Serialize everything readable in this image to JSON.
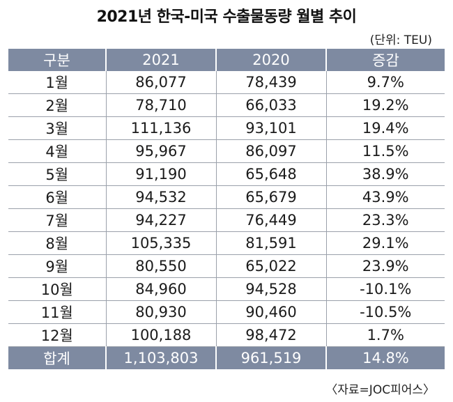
{
  "title": "2021년 한국-미국 수출물동량 월별 추이",
  "unit_note": "(단위: TEU)",
  "headers": [
    "구분",
    "2021",
    "2020",
    "증감"
  ],
  "rows": [
    [
      "1월",
      "86,077",
      "78,439",
      "9.7%"
    ],
    [
      "2월",
      "78,710",
      "66,033",
      "19.2%"
    ],
    [
      "3월",
      "111,136",
      "93,101",
      "19.4%"
    ],
    [
      "4월",
      "95,967",
      "86,097",
      "11.5%"
    ],
    [
      "5월",
      "91,190",
      "65,648",
      "38.9%"
    ],
    [
      "6월",
      "94,532",
      "65,679",
      "43.9%"
    ],
    [
      "7월",
      "94,227",
      "76,449",
      "23.3%"
    ],
    [
      "8월",
      "105,335",
      "81,591",
      "29.1%"
    ],
    [
      "9월",
      "80,550",
      "65,022",
      "23.9%"
    ],
    [
      "10월",
      "84,960",
      "94,528",
      "-10.1%"
    ],
    [
      "11월",
      "80,930",
      "90,460",
      "-10.5%"
    ],
    [
      "12월",
      "100,188",
      "98,472",
      "1.7%"
    ]
  ],
  "total": [
    "합계",
    "1,103,803",
    "961,519",
    "14.8%"
  ],
  "source": "〈자료=JOC피어스〉",
  "colors": {
    "header_bg": "#7e8aa1",
    "header_text": "#ffffff"
  }
}
